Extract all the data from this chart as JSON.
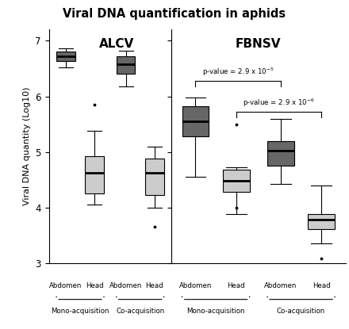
{
  "title": "Viral DNA quantification in aphids",
  "ylabel": "Viral DNA quantity (Log10)",
  "ylim": [
    3.0,
    7.2
  ],
  "yticks": [
    3,
    4,
    5,
    6,
    7
  ],
  "dark_grey": "#666666",
  "light_grey": "#cccccc",
  "groups": {
    "ALCV": {
      "mono_abdomen": {
        "color": "dark",
        "q1": 6.63,
        "median": 6.72,
        "q3": 6.8,
        "whislo": 6.52,
        "whishi": 6.86,
        "fliers": []
      },
      "mono_head": {
        "color": "light",
        "q1": 4.25,
        "median": 4.62,
        "q3": 4.92,
        "whislo": 4.05,
        "whishi": 5.38,
        "fliers": [
          5.85
        ]
      },
      "co_abdomen": {
        "color": "dark",
        "q1": 6.4,
        "median": 6.58,
        "q3": 6.72,
        "whislo": 6.18,
        "whishi": 6.82,
        "fliers": []
      },
      "co_head": {
        "color": "light",
        "q1": 4.22,
        "median": 4.62,
        "q3": 4.88,
        "whislo": 4.0,
        "whishi": 5.1,
        "fliers": [
          3.65
        ]
      }
    },
    "FBNSV": {
      "mono_abdomen": {
        "color": "dark",
        "q1": 5.28,
        "median": 5.55,
        "q3": 5.82,
        "whislo": 4.55,
        "whishi": 5.98,
        "fliers": []
      },
      "mono_head": {
        "color": "light",
        "q1": 4.28,
        "median": 4.48,
        "q3": 4.68,
        "whislo": 3.88,
        "whishi": 4.72,
        "fliers": [
          4.0,
          5.5
        ]
      },
      "co_abdomen": {
        "color": "dark",
        "q1": 4.75,
        "median": 5.02,
        "q3": 5.2,
        "whislo": 4.42,
        "whishi": 5.6,
        "fliers": []
      },
      "co_head": {
        "color": "light",
        "q1": 3.62,
        "median": 3.78,
        "q3": 3.88,
        "whislo": 3.35,
        "whishi": 4.4,
        "fliers": [
          3.08
        ]
      }
    }
  },
  "pv1_text": "p-value = 2.9 x 10",
  "pv1_exp": "-5",
  "pv2_text": "p-value = 2.9 x 10",
  "pv2_exp": "-6",
  "xlabels": [
    "Abdomen",
    "Head",
    "Abdomen",
    "Head"
  ],
  "group_labels": [
    "Mono-acquisition",
    "Co-acquisition"
  ],
  "panel_labels": [
    "ALCV",
    "FBNSV"
  ]
}
